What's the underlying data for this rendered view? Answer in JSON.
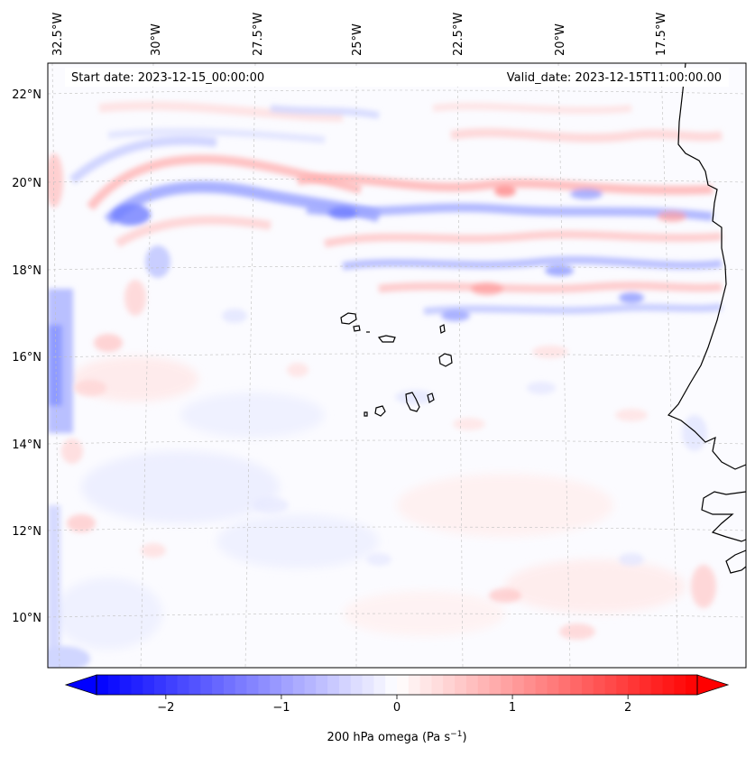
{
  "header": {
    "start_date": "Start date: 2023-12-15_00:00:00",
    "valid_date": "Valid_date: 2023-12-15T11:00:00.00"
  },
  "map": {
    "projection": "lambert-conformal",
    "lon_range": [
      -33,
      -15
    ],
    "lat_range": [
      9,
      22.8
    ],
    "lon_labels": [
      "32.5°W",
      "30°W",
      "27.5°W",
      "25°W",
      "22.5°W",
      "20°W",
      "17.5°W"
    ],
    "lat_labels": [
      "22°N",
      "20°N",
      "18°N",
      "16°N",
      "14°N",
      "12°N",
      "10°N"
    ],
    "gridlines": true,
    "coastlines": true
  },
  "colorbar": {
    "label": "200 hPa omega (Pa s",
    "label_sup": "−1",
    "label_close": ")",
    "tick_labels": [
      "−2",
      "−1",
      "0",
      "1",
      "2"
    ],
    "ticks": [
      -2,
      -1,
      0,
      1,
      2
    ],
    "range": [
      -2.6,
      2.6
    ],
    "extend": "both",
    "colormap": "bwr",
    "color_min": "#0000ff",
    "color_mid": "#ffffff",
    "color_max": "#ff0000"
  }
}
